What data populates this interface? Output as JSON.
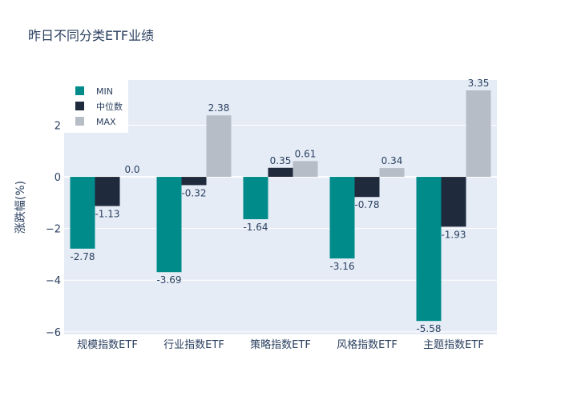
{
  "chart_data": {
    "type": "bar",
    "title": "昨日不同分类ETF业绩",
    "xlabel": "",
    "ylabel": "涨跌幅(%)",
    "categories": [
      "规模指数ETF",
      "行业指数ETF",
      "策略指数ETF",
      "风格指数ETF",
      "主题指数ETF"
    ],
    "series": [
      {
        "name": "MIN",
        "color": "#008b8b",
        "values": [
          -2.78,
          -3.69,
          -1.64,
          -3.16,
          -5.58
        ],
        "labels": [
          "-2.78",
          "-3.69",
          "-1.64",
          "-3.16",
          "-5.58"
        ]
      },
      {
        "name": "中位数",
        "color": "#1f2a3c",
        "values": [
          -1.13,
          -0.32,
          0.35,
          -0.78,
          -1.93
        ],
        "labels": [
          "-1.13",
          "-0.32",
          "0.35",
          "-0.78",
          "-1.93"
        ]
      },
      {
        "name": "MAX",
        "color": "#b6bdc6",
        "values": [
          0.0,
          2.38,
          0.61,
          0.34,
          3.35
        ],
        "labels": [
          "0.0",
          "2.38",
          "0.61",
          "0.34",
          "3.35"
        ]
      }
    ],
    "ylim": [
      -6,
      4
    ],
    "yticks": [
      -6,
      -4,
      -2,
      0,
      2
    ],
    "ytick_labels": [
      "−6",
      "−4",
      "−2",
      "0",
      "2"
    ],
    "grid": true,
    "legend_position": "top-left",
    "plot_bg": "#e5ecf6"
  }
}
